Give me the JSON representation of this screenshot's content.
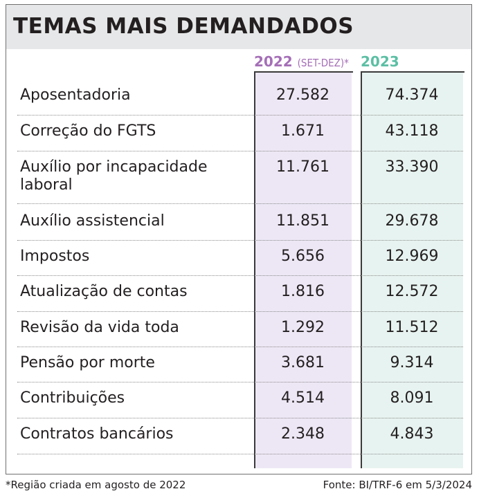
{
  "title": "TEMAS MAIS DEMANDADOS",
  "columns": {
    "y2022": {
      "year": "2022",
      "note": "(SET-DEZ)*"
    },
    "y2023": {
      "year": "2023"
    }
  },
  "rows": [
    {
      "label": "Aposentadoria",
      "v2022": "27.582",
      "v2023": "74.374"
    },
    {
      "label": "Correção do FGTS",
      "v2022": "1.671",
      "v2023": "43.118"
    },
    {
      "label": "Auxílio por incapacidade laboral",
      "v2022": "11.761",
      "v2023": "33.390"
    },
    {
      "label": "Auxílio assistencial",
      "v2022": "11.851",
      "v2023": "29.678"
    },
    {
      "label": "Impostos",
      "v2022": "5.656",
      "v2023": "12.969"
    },
    {
      "label": "Atualização de contas",
      "v2022": "1.816",
      "v2023": "12.572"
    },
    {
      "label": "Revisão da vida toda",
      "v2022": "1.292",
      "v2023": "11.512"
    },
    {
      "label": "Pensão por morte",
      "v2022": "3.681",
      "v2023": "9.314"
    },
    {
      "label": "Contribuições",
      "v2022": "4.514",
      "v2023": "8.091"
    },
    {
      "label": "Contratos bancários",
      "v2022": "2.348",
      "v2023": "4.843"
    }
  ],
  "footnote": "*Região criada em agosto de 2022",
  "source": "Fonte: BI/TRF-6 em 5/3/2024",
  "colors": {
    "header_2022": "#a56fb7",
    "header_2023": "#5cbfa4",
    "column_2022_bg": "#ede7f5",
    "column_2023_bg": "#e7f3f0",
    "title_bar_bg": "#e6e7e8"
  }
}
